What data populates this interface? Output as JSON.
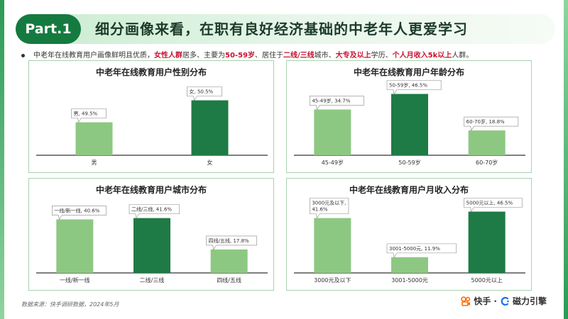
{
  "header": {
    "part_label": "Part.1",
    "title": "细分画像来看，在职有良好经济基础的中老年人更爱学习"
  },
  "summary": {
    "t1": "中老年在线教育用户画像鲜明且优质，",
    "h1": "女性人群",
    "t2": "居多、主要为",
    "h2": "50-59岁",
    "t3": "、居住于",
    "h3": "二线/三线",
    "t4": "城市、",
    "h4": "大专及以上",
    "t5": "学历、",
    "h5": "个人月收入5k以上",
    "t6": "人群。"
  },
  "colors": {
    "dark": "#1e7b45",
    "light": "#8dc882",
    "accent": "#c8102e",
    "border": "#a7d3ac"
  },
  "chart_data": [
    {
      "type": "bar",
      "title": "中老年在线教育用户性别分布",
      "categories": [
        "男",
        "女"
      ],
      "values": [
        49.5,
        50.5
      ],
      "labels": [
        "男, 49.5%",
        "女, 50.5%"
      ],
      "highlight": [
        false,
        true
      ],
      "ylim": [
        48,
        51
      ]
    },
    {
      "type": "bar",
      "title": "中老年在线教育用户年龄分布",
      "categories": [
        "45-49岁",
        "50-59岁",
        "60-70岁"
      ],
      "values": [
        34.7,
        46.5,
        18.8
      ],
      "labels": [
        "45-49岁, 34.7%",
        "50-59岁, 46.5%",
        "60-70岁, 18.8%"
      ],
      "highlight": [
        false,
        true,
        false
      ],
      "ylim": [
        0,
        50
      ]
    },
    {
      "type": "bar",
      "title": "中老年在线教育用户城市分布",
      "categories": [
        "一线/新一线",
        "二线/三线",
        "四线/五线"
      ],
      "values": [
        40.6,
        41.6,
        17.8
      ],
      "labels": [
        "一线/新一线, 40.6%",
        "二线/三线, 41.6%",
        "四线/五线, 17.8%"
      ],
      "highlight": [
        false,
        true,
        false
      ],
      "ylim": [
        0,
        50
      ]
    },
    {
      "type": "bar",
      "title": "中老年在线教育用户月收入分布",
      "categories": [
        "3000元及以下",
        "3001-5000元",
        "5000元以上"
      ],
      "values": [
        41.6,
        11.9,
        46.5
      ],
      "labels": [
        "3000元及以下,\n41.6%",
        "3001-5000元, 11.9%",
        "5000元以上, 46.5%"
      ],
      "highlight": [
        false,
        false,
        true
      ],
      "ylim": [
        0,
        50
      ]
    }
  ],
  "footer": {
    "source": "数据来源：快手调研数据，2024年5月",
    "logo_kuaishou": "快手",
    "logo_sep": "·",
    "logo_cili": "磁力引擎"
  }
}
